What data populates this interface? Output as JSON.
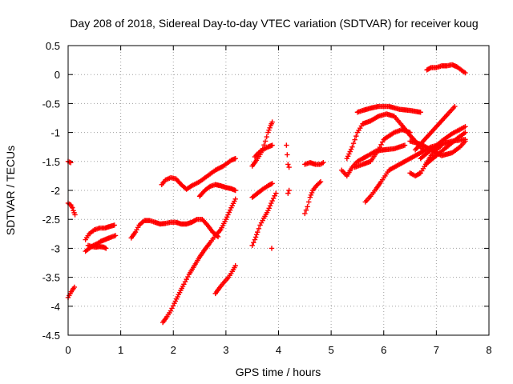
{
  "chart_data": {
    "type": "scatter",
    "title": "Day 208 of 2018, Sidereal Day-to-day VTEC variation (SDTVAR) for receiver koug",
    "xlabel": "GPS time / hours",
    "ylabel": "SDTVAR / TECUs",
    "xlim": [
      0,
      8
    ],
    "ylim": [
      -4.5,
      0.5
    ],
    "x_ticks": [
      "0",
      "1",
      "2",
      "3",
      "4",
      "5",
      "6",
      "7",
      "8"
    ],
    "y_ticks": [
      "0.5",
      "0",
      "-0.5",
      "-1",
      "-1.5",
      "-2",
      "-2.5",
      "-3",
      "-3.5",
      "-4",
      "-4.5"
    ],
    "grid": true,
    "marker": "plus",
    "color": "#ff0000",
    "series": [
      {
        "points": [
          [
            0.0,
            -1.5
          ],
          [
            0.05,
            -1.52
          ]
        ]
      },
      {
        "points": [
          [
            0.0,
            -2.22
          ],
          [
            0.05,
            -2.25
          ],
          [
            0.08,
            -2.3
          ],
          [
            0.1,
            -2.35
          ],
          [
            0.13,
            -2.42
          ]
        ]
      },
      {
        "points": [
          [
            0.0,
            -3.85
          ],
          [
            0.04,
            -3.78
          ],
          [
            0.08,
            -3.72
          ],
          [
            0.12,
            -3.67
          ]
        ]
      },
      {
        "points": [
          [
            0.33,
            -3.05
          ],
          [
            0.4,
            -3.0
          ],
          [
            0.48,
            -2.95
          ],
          [
            0.55,
            -2.92
          ],
          [
            0.62,
            -2.88
          ],
          [
            0.7,
            -2.85
          ],
          [
            0.78,
            -2.82
          ],
          [
            0.9,
            -2.78
          ]
        ]
      },
      {
        "points": [
          [
            0.33,
            -2.85
          ],
          [
            0.4,
            -2.75
          ],
          [
            0.5,
            -2.68
          ],
          [
            0.6,
            -2.65
          ],
          [
            0.7,
            -2.65
          ],
          [
            0.8,
            -2.62
          ],
          [
            0.88,
            -2.6
          ]
        ]
      },
      {
        "points": [
          [
            0.38,
            -2.95
          ],
          [
            0.45,
            -2.97
          ],
          [
            0.52,
            -2.98
          ],
          [
            0.6,
            -2.97
          ],
          [
            0.68,
            -2.98
          ],
          [
            0.72,
            -3.0
          ]
        ]
      },
      {
        "points": [
          [
            1.2,
            -2.82
          ],
          [
            1.28,
            -2.72
          ],
          [
            1.35,
            -2.6
          ],
          [
            1.45,
            -2.52
          ],
          [
            1.55,
            -2.52
          ],
          [
            1.65,
            -2.55
          ],
          [
            1.75,
            -2.58
          ],
          [
            1.85,
            -2.57
          ],
          [
            1.95,
            -2.55
          ],
          [
            2.05,
            -2.55
          ],
          [
            2.15,
            -2.58
          ],
          [
            2.25,
            -2.58
          ],
          [
            2.35,
            -2.55
          ],
          [
            2.45,
            -2.5
          ],
          [
            2.55,
            -2.5
          ],
          [
            2.65,
            -2.6
          ],
          [
            2.75,
            -2.72
          ],
          [
            2.85,
            -2.8
          ]
        ]
      },
      {
        "points": [
          [
            1.78,
            -1.9
          ],
          [
            1.85,
            -1.82
          ],
          [
            1.95,
            -1.78
          ],
          [
            2.05,
            -1.8
          ],
          [
            2.15,
            -1.9
          ],
          [
            2.25,
            -1.98
          ],
          [
            2.35,
            -1.92
          ],
          [
            2.5,
            -1.85
          ],
          [
            2.65,
            -1.75
          ],
          [
            2.8,
            -1.65
          ],
          [
            2.95,
            -1.58
          ],
          [
            3.1,
            -1.48
          ],
          [
            3.18,
            -1.45
          ]
        ]
      },
      {
        "points": [
          [
            2.5,
            -2.1
          ],
          [
            2.6,
            -2.0
          ],
          [
            2.7,
            -1.93
          ],
          [
            2.8,
            -1.9
          ],
          [
            2.9,
            -1.92
          ],
          [
            3.0,
            -1.95
          ],
          [
            3.1,
            -1.97
          ],
          [
            3.18,
            -2.0
          ]
        ]
      },
      {
        "points": [
          [
            1.8,
            -4.28
          ],
          [
            1.88,
            -4.18
          ],
          [
            1.95,
            -4.08
          ],
          [
            2.02,
            -3.95
          ],
          [
            2.1,
            -3.8
          ],
          [
            2.2,
            -3.62
          ],
          [
            2.3,
            -3.45
          ],
          [
            2.4,
            -3.3
          ],
          [
            2.5,
            -3.15
          ],
          [
            2.6,
            -3.02
          ],
          [
            2.7,
            -2.9
          ],
          [
            2.8,
            -2.78
          ],
          [
            2.9,
            -2.68
          ],
          [
            3.0,
            -2.5
          ],
          [
            3.1,
            -2.3
          ],
          [
            3.18,
            -2.15
          ]
        ]
      },
      {
        "points": [
          [
            2.8,
            -3.78
          ],
          [
            2.88,
            -3.68
          ],
          [
            2.95,
            -3.6
          ],
          [
            3.05,
            -3.5
          ],
          [
            3.12,
            -3.4
          ],
          [
            3.18,
            -3.3
          ]
        ]
      },
      {
        "points": [
          [
            3.5,
            -2.95
          ],
          [
            3.55,
            -2.85
          ],
          [
            3.6,
            -2.72
          ],
          [
            3.65,
            -2.6
          ],
          [
            3.72,
            -2.48
          ],
          [
            3.8,
            -2.35
          ],
          [
            3.88,
            -2.18
          ],
          [
            3.95,
            -2.05
          ]
        ]
      },
      {
        "points": [
          [
            3.5,
            -2.12
          ],
          [
            3.6,
            -2.05
          ],
          [
            3.7,
            -1.98
          ],
          [
            3.8,
            -1.92
          ],
          [
            3.88,
            -1.88
          ]
        ]
      },
      {
        "points": [
          [
            3.5,
            -1.58
          ],
          [
            3.58,
            -1.48
          ],
          [
            3.65,
            -1.38
          ],
          [
            3.7,
            -1.28
          ],
          [
            3.75,
            -1.15
          ],
          [
            3.8,
            -1.0
          ],
          [
            3.85,
            -0.88
          ],
          [
            3.88,
            -0.82
          ]
        ]
      },
      {
        "points": [
          [
            3.55,
            -1.42
          ],
          [
            3.62,
            -1.35
          ],
          [
            3.7,
            -1.3
          ],
          [
            3.8,
            -1.25
          ],
          [
            3.88,
            -1.22
          ]
        ]
      },
      {
        "points": [
          [
            3.87,
            -3.0
          ]
        ]
      },
      {
        "points": [
          [
            4.15,
            -1.22
          ],
          [
            4.18,
            -1.55
          ],
          [
            4.2,
            -1.6
          ]
        ]
      },
      {
        "points": [
          [
            4.2,
            -2.0
          ],
          [
            4.18,
            -2.05
          ]
        ]
      },
      {
        "points": [
          [
            4.5,
            -2.4
          ],
          [
            4.55,
            -2.28
          ],
          [
            4.6,
            -2.12
          ],
          [
            4.65,
            -2.0
          ],
          [
            4.72,
            -1.92
          ],
          [
            4.8,
            -1.85
          ]
        ]
      },
      {
        "points": [
          [
            4.5,
            -1.55
          ],
          [
            4.6,
            -1.52
          ],
          [
            4.7,
            -1.55
          ],
          [
            4.8,
            -1.55
          ],
          [
            4.85,
            -1.52
          ]
        ]
      },
      {
        "points": [
          [
            5.2,
            -1.65
          ],
          [
            5.3,
            -1.75
          ],
          [
            5.4,
            -1.6
          ],
          [
            5.5,
            -1.5
          ],
          [
            5.6,
            -1.45
          ],
          [
            5.7,
            -1.4
          ],
          [
            5.85,
            -1.32
          ],
          [
            6.0,
            -1.3
          ],
          [
            6.2,
            -1.28
          ],
          [
            6.4,
            -1.22
          ]
        ]
      },
      {
        "points": [
          [
            5.3,
            -1.45
          ],
          [
            5.4,
            -1.25
          ],
          [
            5.5,
            -1.0
          ],
          [
            5.6,
            -0.85
          ],
          [
            5.75,
            -0.8
          ],
          [
            5.9,
            -0.72
          ],
          [
            6.05,
            -0.68
          ],
          [
            6.2,
            -0.72
          ],
          [
            6.35,
            -0.88
          ],
          [
            6.5,
            -1.05
          ],
          [
            6.65,
            -1.2
          ],
          [
            6.75,
            -1.3
          ]
        ]
      },
      {
        "points": [
          [
            5.5,
            -0.65
          ],
          [
            5.6,
            -0.62
          ],
          [
            5.75,
            -0.58
          ],
          [
            5.9,
            -0.55
          ],
          [
            6.1,
            -0.55
          ],
          [
            6.3,
            -0.6
          ],
          [
            6.5,
            -0.62
          ],
          [
            6.7,
            -0.65
          ]
        ]
      },
      {
        "points": [
          [
            5.45,
            -1.6
          ],
          [
            5.6,
            -1.55
          ],
          [
            5.75,
            -1.5
          ],
          [
            5.9,
            -1.3
          ],
          [
            6.0,
            -1.12
          ],
          [
            6.2,
            -1.0
          ],
          [
            6.35,
            -0.95
          ],
          [
            6.5,
            -1.0
          ]
        ]
      },
      {
        "points": [
          [
            5.65,
            -2.2
          ],
          [
            5.75,
            -2.1
          ],
          [
            5.85,
            -1.98
          ],
          [
            5.95,
            -1.85
          ],
          [
            6.1,
            -1.65
          ],
          [
            6.3,
            -1.55
          ],
          [
            6.5,
            -1.45
          ],
          [
            6.7,
            -1.35
          ],
          [
            6.9,
            -1.25
          ],
          [
            7.1,
            -1.2
          ],
          [
            7.3,
            -1.15
          ],
          [
            7.55,
            -1.12
          ]
        ]
      },
      {
        "points": [
          [
            6.5,
            -1.7
          ],
          [
            6.6,
            -1.75
          ],
          [
            6.7,
            -1.7
          ],
          [
            6.8,
            -1.55
          ],
          [
            6.9,
            -1.4
          ],
          [
            7.0,
            -1.3
          ],
          [
            7.1,
            -1.22
          ]
        ]
      },
      {
        "points": [
          [
            6.5,
            -1.15
          ],
          [
            6.7,
            -1.2
          ],
          [
            6.9,
            -1.3
          ],
          [
            7.1,
            -1.4
          ],
          [
            7.3,
            -1.35
          ],
          [
            7.45,
            -1.25
          ],
          [
            7.55,
            -1.15
          ]
        ]
      },
      {
        "points": [
          [
            6.6,
            -1.3
          ],
          [
            6.8,
            -1.1
          ],
          [
            7.0,
            -0.9
          ],
          [
            7.2,
            -0.7
          ],
          [
            7.35,
            -0.55
          ]
        ]
      },
      {
        "points": [
          [
            6.7,
            -1.45
          ],
          [
            6.9,
            -1.3
          ],
          [
            7.1,
            -1.15
          ],
          [
            7.3,
            -1.02
          ],
          [
            7.55,
            -0.9
          ]
        ]
      },
      {
        "points": [
          [
            6.8,
            -1.55
          ],
          [
            7.0,
            -1.4
          ],
          [
            7.2,
            -1.25
          ],
          [
            7.4,
            -1.1
          ],
          [
            7.55,
            -1.0
          ]
        ]
      },
      {
        "points": [
          [
            6.82,
            0.08
          ],
          [
            6.9,
            0.12
          ],
          [
            7.0,
            0.12
          ],
          [
            7.1,
            0.15
          ],
          [
            7.2,
            0.15
          ],
          [
            7.3,
            0.17
          ],
          [
            7.4,
            0.13
          ],
          [
            7.5,
            0.06
          ],
          [
            7.55,
            0.03
          ]
        ]
      }
    ]
  }
}
